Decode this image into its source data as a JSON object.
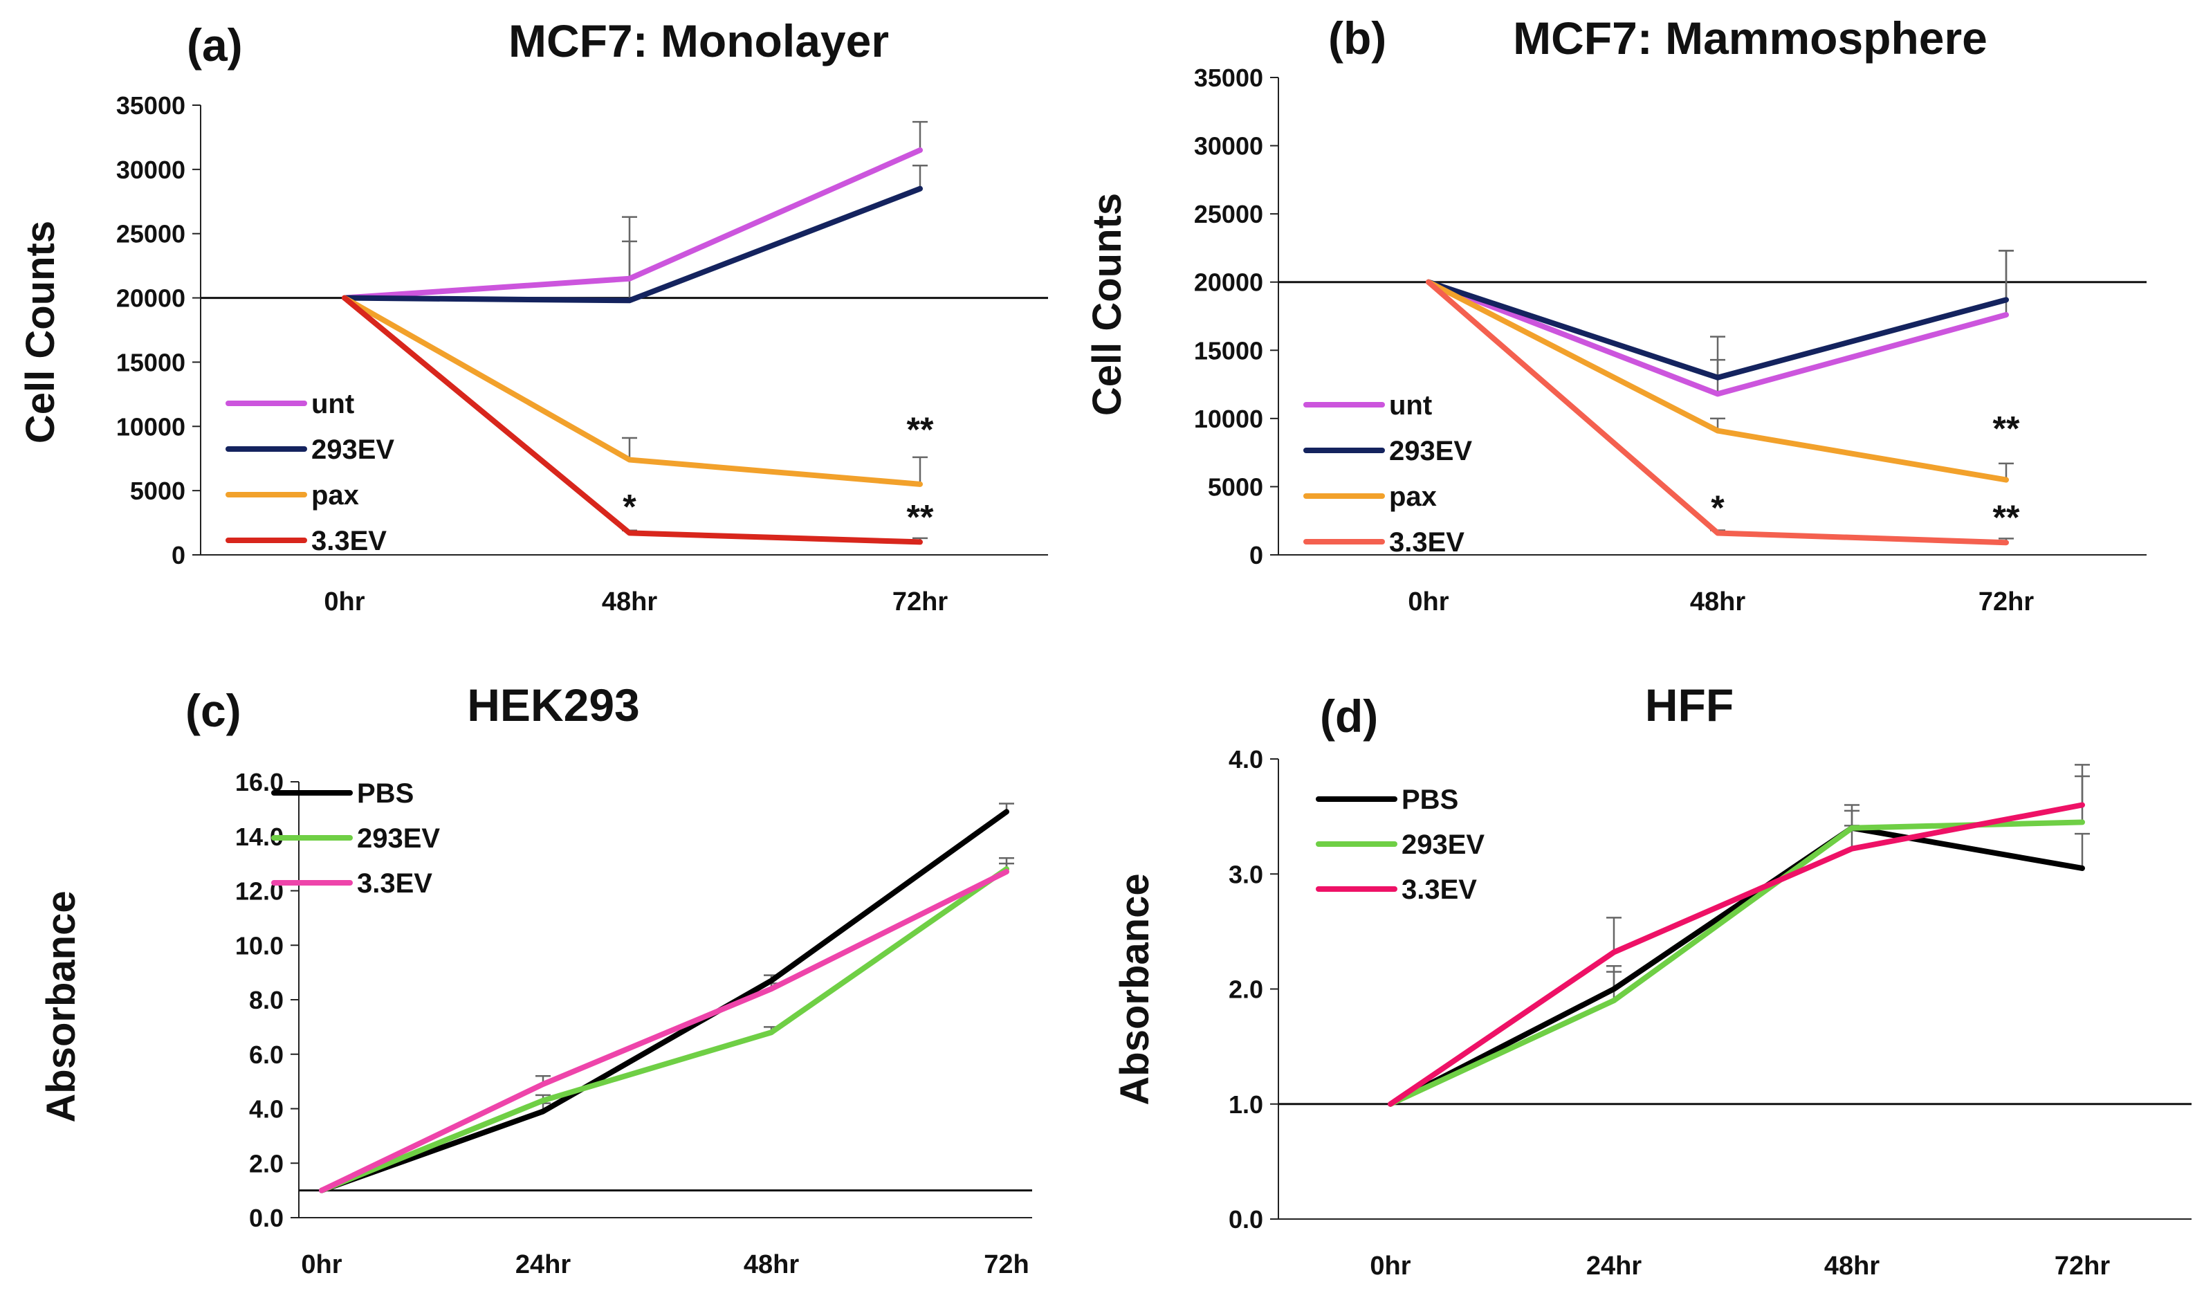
{
  "chart_data": [
    {
      "type": "line",
      "panel_label": "(a)",
      "title": "MCF7: Monolayer",
      "xlabel": "",
      "ylabel": "Cell Counts",
      "categories": [
        "0hr",
        "48hr",
        "72hr"
      ],
      "ylim": [
        0,
        35000
      ],
      "yticks": [
        0,
        5000,
        10000,
        15000,
        20000,
        25000,
        30000,
        35000
      ],
      "ytick_labels": [
        "0",
        "5000",
        "10000",
        "15000",
        "20000",
        "25000",
        "30000",
        "35000"
      ],
      "reference_line": 20000,
      "legend_position": "bottom-left",
      "series": [
        {
          "name": "unt",
          "color": "#cc55dd",
          "values": [
            20000,
            21500,
            31500
          ],
          "errors": [
            0,
            4800,
            2200
          ]
        },
        {
          "name": "293EV",
          "color": "#14235e",
          "values": [
            20000,
            19800,
            28500
          ],
          "errors": [
            0,
            4600,
            1800
          ]
        },
        {
          "name": "pax",
          "color": "#f2a12b",
          "values": [
            20000,
            7400,
            5500
          ],
          "errors": [
            0,
            1700,
            2100
          ]
        },
        {
          "name": "3.3EV",
          "color": "#d8261c",
          "values": [
            20000,
            1700,
            1000
          ],
          "errors": [
            0,
            200,
            300
          ]
        }
      ],
      "annotations": [
        {
          "text": "**",
          "x": "72hr",
          "y": 9800
        },
        {
          "text": "*",
          "x": "48hr",
          "y": 3800
        },
        {
          "text": "**",
          "x": "72hr",
          "y": 3000
        }
      ]
    },
    {
      "type": "line",
      "panel_label": "(b)",
      "title": "MCF7: Mammosphere",
      "xlabel": "",
      "ylabel": "Cell Counts",
      "categories": [
        "0hr",
        "48hr",
        "72hr"
      ],
      "ylim": [
        0,
        35000
      ],
      "yticks": [
        0,
        5000,
        10000,
        15000,
        20000,
        25000,
        30000,
        35000
      ],
      "ytick_labels": [
        "0",
        "5000",
        "10000",
        "15000",
        "20000",
        "25000",
        "30000",
        "35000"
      ],
      "reference_line": 20000,
      "legend_position": "bottom-left",
      "series": [
        {
          "name": "unt",
          "color": "#cc55dd",
          "values": [
            20000,
            11800,
            17600
          ],
          "errors": [
            0,
            2500,
            4700
          ]
        },
        {
          "name": "293EV",
          "color": "#14235e",
          "values": [
            20000,
            13000,
            18700
          ],
          "errors": [
            0,
            3000,
            3600
          ]
        },
        {
          "name": "pax",
          "color": "#f2a12b",
          "values": [
            20000,
            9100,
            5500
          ],
          "errors": [
            0,
            900,
            1200
          ]
        },
        {
          "name": "3.3EV",
          "color": "#f4604f",
          "values": [
            20000,
            1600,
            900
          ],
          "errors": [
            0,
            200,
            300
          ]
        }
      ],
      "annotations": [
        {
          "text": "**",
          "x": "72hr",
          "y": 9300
        },
        {
          "text": "*",
          "x": "48hr",
          "y": 3500
        },
        {
          "text": "**",
          "x": "72hr",
          "y": 2800
        }
      ]
    },
    {
      "type": "line",
      "panel_label": "(c)",
      "title": "HEK293",
      "xlabel": "",
      "ylabel": "Absorbance",
      "categories": [
        "0hr",
        "24hr",
        "48hr",
        "72h"
      ],
      "ylim": [
        0,
        16
      ],
      "yticks": [
        0,
        2,
        4,
        6,
        8,
        10,
        12,
        14,
        16
      ],
      "ytick_labels": [
        "0.0",
        "2.0",
        "4.0",
        "6.0",
        "8.0",
        "10.0",
        "12.0",
        "14.0",
        "16.0"
      ],
      "reference_line": 1,
      "legend_position": "top-left",
      "series": [
        {
          "name": "PBS",
          "color": "#000000",
          "values": [
            1.0,
            3.9,
            8.7,
            14.9
          ],
          "errors": [
            0,
            0.3,
            0.2,
            0.3
          ]
        },
        {
          "name": "293EV",
          "color": "#6fcf45",
          "values": [
            1.0,
            4.3,
            6.8,
            12.8
          ],
          "errors": [
            0,
            0.2,
            0.2,
            0.4
          ]
        },
        {
          "name": "3.3EV",
          "color": "#ee44aa",
          "values": [
            1.0,
            4.9,
            8.4,
            12.7
          ],
          "errors": [
            0,
            0.3,
            0.2,
            0.3
          ]
        }
      ]
    },
    {
      "type": "line",
      "panel_label": "(d)",
      "title": "HFF",
      "xlabel": "",
      "ylabel": "Absorbance",
      "categories": [
        "0hr",
        "24hr",
        "48hr",
        "72hr"
      ],
      "ylim": [
        0,
        4
      ],
      "yticks": [
        0,
        1,
        2,
        3,
        4
      ],
      "ytick_labels": [
        "0.0",
        "1.0",
        "2.0",
        "3.0",
        "4.0"
      ],
      "reference_line": 1,
      "legend_position": "top-left",
      "series": [
        {
          "name": "PBS",
          "color": "#000000",
          "values": [
            1.0,
            2.0,
            3.4,
            3.05
          ],
          "errors": [
            0,
            0.2,
            0.15,
            0.3
          ]
        },
        {
          "name": "293EV",
          "color": "#6fcf45",
          "values": [
            1.0,
            1.9,
            3.4,
            3.45
          ],
          "errors": [
            0,
            0.25,
            0.2,
            0.4
          ]
        },
        {
          "name": "3.3EV",
          "color": "#ee1166",
          "values": [
            1.0,
            2.32,
            3.22,
            3.6
          ],
          "errors": [
            0,
            0.3,
            0.2,
            0.35
          ]
        }
      ]
    }
  ]
}
